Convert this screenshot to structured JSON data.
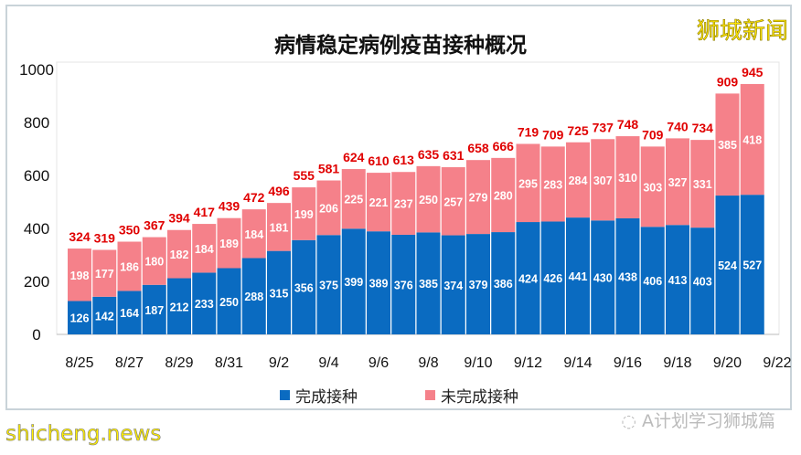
{
  "chart_data": {
    "type": "bar",
    "stacked": true,
    "title": "病情稳定病例疫苗接种概况",
    "categories": [
      "8/25",
      "8/26",
      "8/27",
      "8/28",
      "8/29",
      "8/30",
      "8/31",
      "9/1",
      "9/2",
      "9/3",
      "9/4",
      "9/5",
      "9/6",
      "9/7",
      "9/8",
      "9/9",
      "9/10",
      "9/11",
      "9/12",
      "9/13",
      "9/14",
      "9/15",
      "9/16",
      "9/17",
      "9/18",
      "9/19",
      "9/20",
      "9/21"
    ],
    "x_tick_labels": [
      "8/25",
      "8/27",
      "8/29",
      "8/31",
      "9/2",
      "9/4",
      "9/6",
      "9/8",
      "9/10",
      "9/12",
      "9/14",
      "9/16",
      "9/18",
      "9/20",
      "9/22"
    ],
    "ylim": [
      0,
      1000
    ],
    "y_ticks": [
      "0",
      "200",
      "400",
      "600",
      "800",
      "1000"
    ],
    "series": [
      {
        "name": "完成接种",
        "color": "#0a6bc1",
        "values": [
          126,
          142,
          164,
          187,
          212,
          233,
          250,
          288,
          315,
          356,
          375,
          399,
          389,
          376,
          385,
          374,
          379,
          386,
          424,
          426,
          441,
          430,
          438,
          406,
          413,
          403,
          524,
          527
        ]
      },
      {
        "name": "未完成接种",
        "color": "#f5818a",
        "values": [
          198,
          177,
          186,
          180,
          182,
          184,
          189,
          184,
          181,
          199,
          206,
          225,
          221,
          237,
          250,
          257,
          279,
          280,
          295,
          283,
          284,
          307,
          310,
          303,
          327,
          331,
          385,
          418
        ]
      }
    ],
    "totals": [
      324,
      319,
      350,
      367,
      394,
      417,
      439,
      472,
      496,
      555,
      581,
      624,
      610,
      613,
      635,
      631,
      658,
      666,
      719,
      709,
      725,
      737,
      748,
      709,
      740,
      734,
      909,
      945
    ],
    "total_label_color": "#e00000",
    "legend": "bottom"
  },
  "brand": "狮城新闻",
  "watermark": "shicheng.news",
  "wechat_source": "A计划学习狮城篇"
}
